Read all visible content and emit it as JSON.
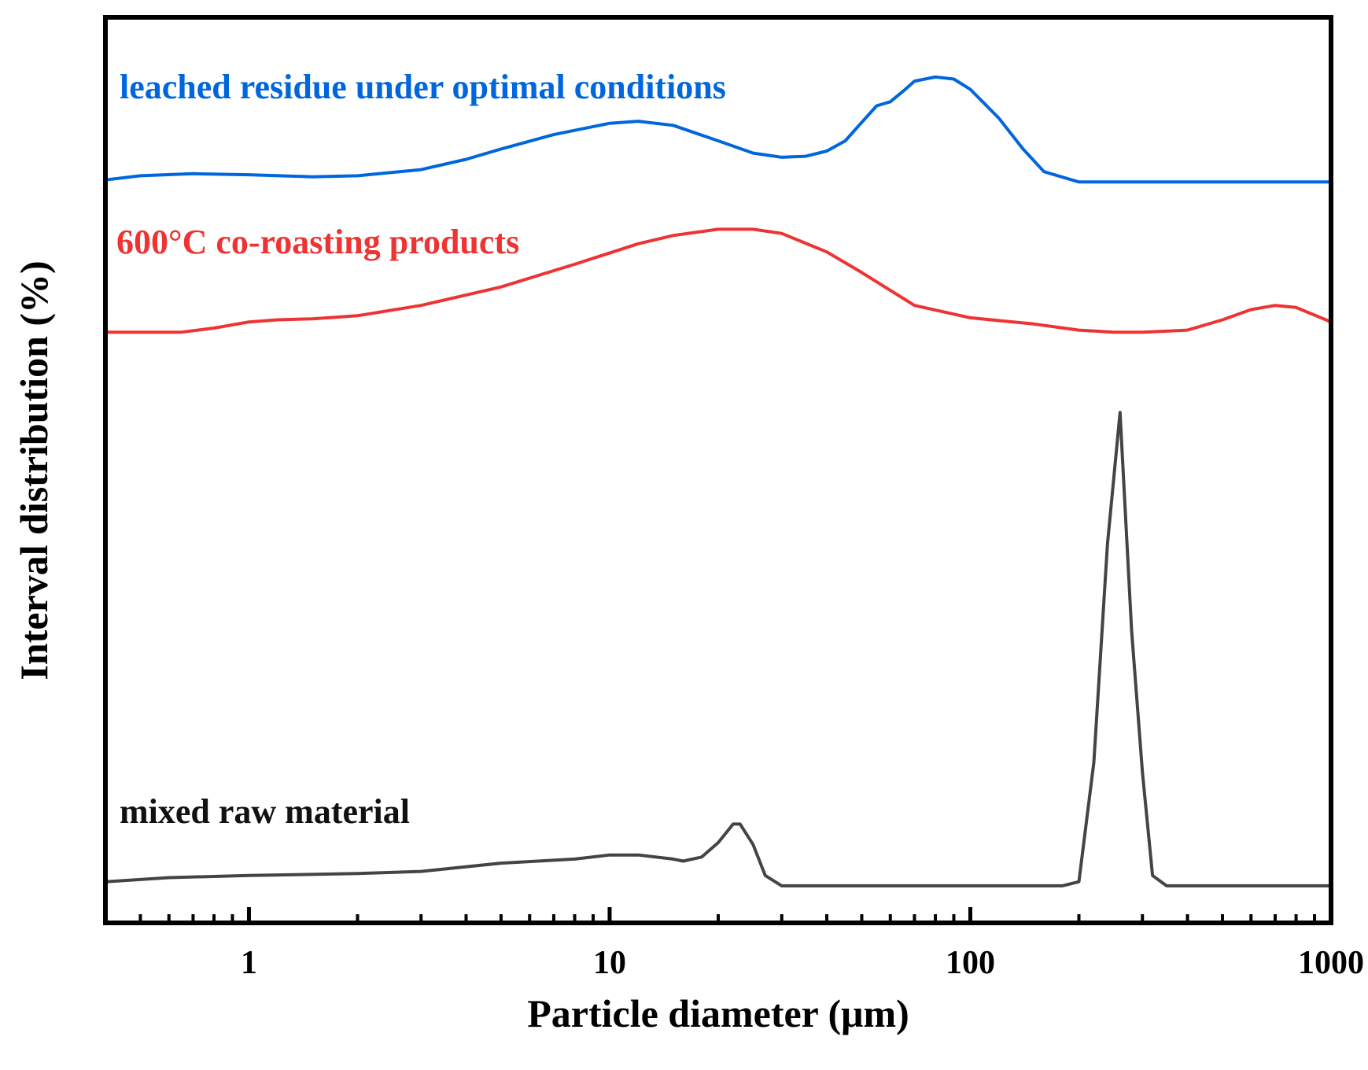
{
  "chart_data": {
    "type": "line",
    "title": "",
    "xlabel": "Particle diameter (μm)",
    "ylabel": "Interval distribution (%)",
    "xscale": "log",
    "xlim": [
      0.4,
      1000
    ],
    "ylim": [
      0,
      4.4
    ],
    "x_ticks": [
      "1",
      "10",
      "100",
      "1000"
    ],
    "y_ticks": [],
    "grid": false,
    "legend": "labels placed above each curve",
    "series": [
      {
        "name": "leached residue under optimal conditions",
        "color": "#0066dd",
        "x": [
          0.4,
          0.5,
          0.7,
          1.0,
          1.5,
          2.0,
          3.0,
          4.0,
          5.0,
          7.0,
          10.0,
          12.0,
          15.0,
          20.0,
          25.0,
          30.0,
          35.0,
          40.0,
          45.0,
          50.0,
          55.0,
          60.0,
          65.0,
          70.0,
          80.0,
          90.0,
          100.0,
          120.0,
          140.0,
          160.0,
          200.0,
          300.0,
          500.0,
          1000.0
        ],
        "y": [
          3.61,
          3.63,
          3.64,
          3.635,
          3.625,
          3.63,
          3.66,
          3.71,
          3.76,
          3.83,
          3.885,
          3.895,
          3.875,
          3.8,
          3.74,
          3.72,
          3.725,
          3.75,
          3.8,
          3.89,
          3.97,
          3.99,
          4.04,
          4.09,
          4.11,
          4.1,
          4.05,
          3.91,
          3.76,
          3.65,
          3.6,
          3.6,
          3.6,
          3.6
        ]
      },
      {
        "name": "600°C co-roasting products",
        "color": "#ee3333",
        "x": [
          0.4,
          0.5,
          0.65,
          0.8,
          1.0,
          1.2,
          1.5,
          2.0,
          3.0,
          5.0,
          8.0,
          12.0,
          15.0,
          20.0,
          25.0,
          30.0,
          40.0,
          50.0,
          70.0,
          100.0,
          150.0,
          200.0,
          250.0,
          300.0,
          350.0,
          400.0,
          500.0,
          600.0,
          700.0,
          800.0,
          1000.0
        ],
        "y": [
          2.87,
          2.87,
          2.87,
          2.89,
          2.92,
          2.93,
          2.935,
          2.95,
          3.0,
          3.09,
          3.2,
          3.3,
          3.34,
          3.37,
          3.37,
          3.35,
          3.26,
          3.16,
          3.0,
          2.94,
          2.91,
          2.88,
          2.87,
          2.87,
          2.875,
          2.88,
          2.93,
          2.98,
          3.0,
          2.99,
          2.92
        ]
      },
      {
        "name": "mixed raw material",
        "color": "#444444",
        "x": [
          0.4,
          0.6,
          1.0,
          2.0,
          3.0,
          5.0,
          8.0,
          10.0,
          12.0,
          15.0,
          16.0,
          18.0,
          20.0,
          22.0,
          23.0,
          25.0,
          27.0,
          30.0,
          50.0,
          100.0,
          180.0,
          200.0,
          220.0,
          240.0,
          260.0,
          280.0,
          300.0,
          320.0,
          350.0,
          500.0,
          1000.0
        ],
        "y": [
          0.2,
          0.22,
          0.23,
          0.24,
          0.25,
          0.29,
          0.31,
          0.33,
          0.33,
          0.31,
          0.3,
          0.32,
          0.39,
          0.48,
          0.48,
          0.38,
          0.23,
          0.18,
          0.18,
          0.18,
          0.18,
          0.2,
          0.78,
          1.84,
          2.48,
          1.42,
          0.73,
          0.23,
          0.18,
          0.18,
          0.18
        ]
      }
    ]
  }
}
